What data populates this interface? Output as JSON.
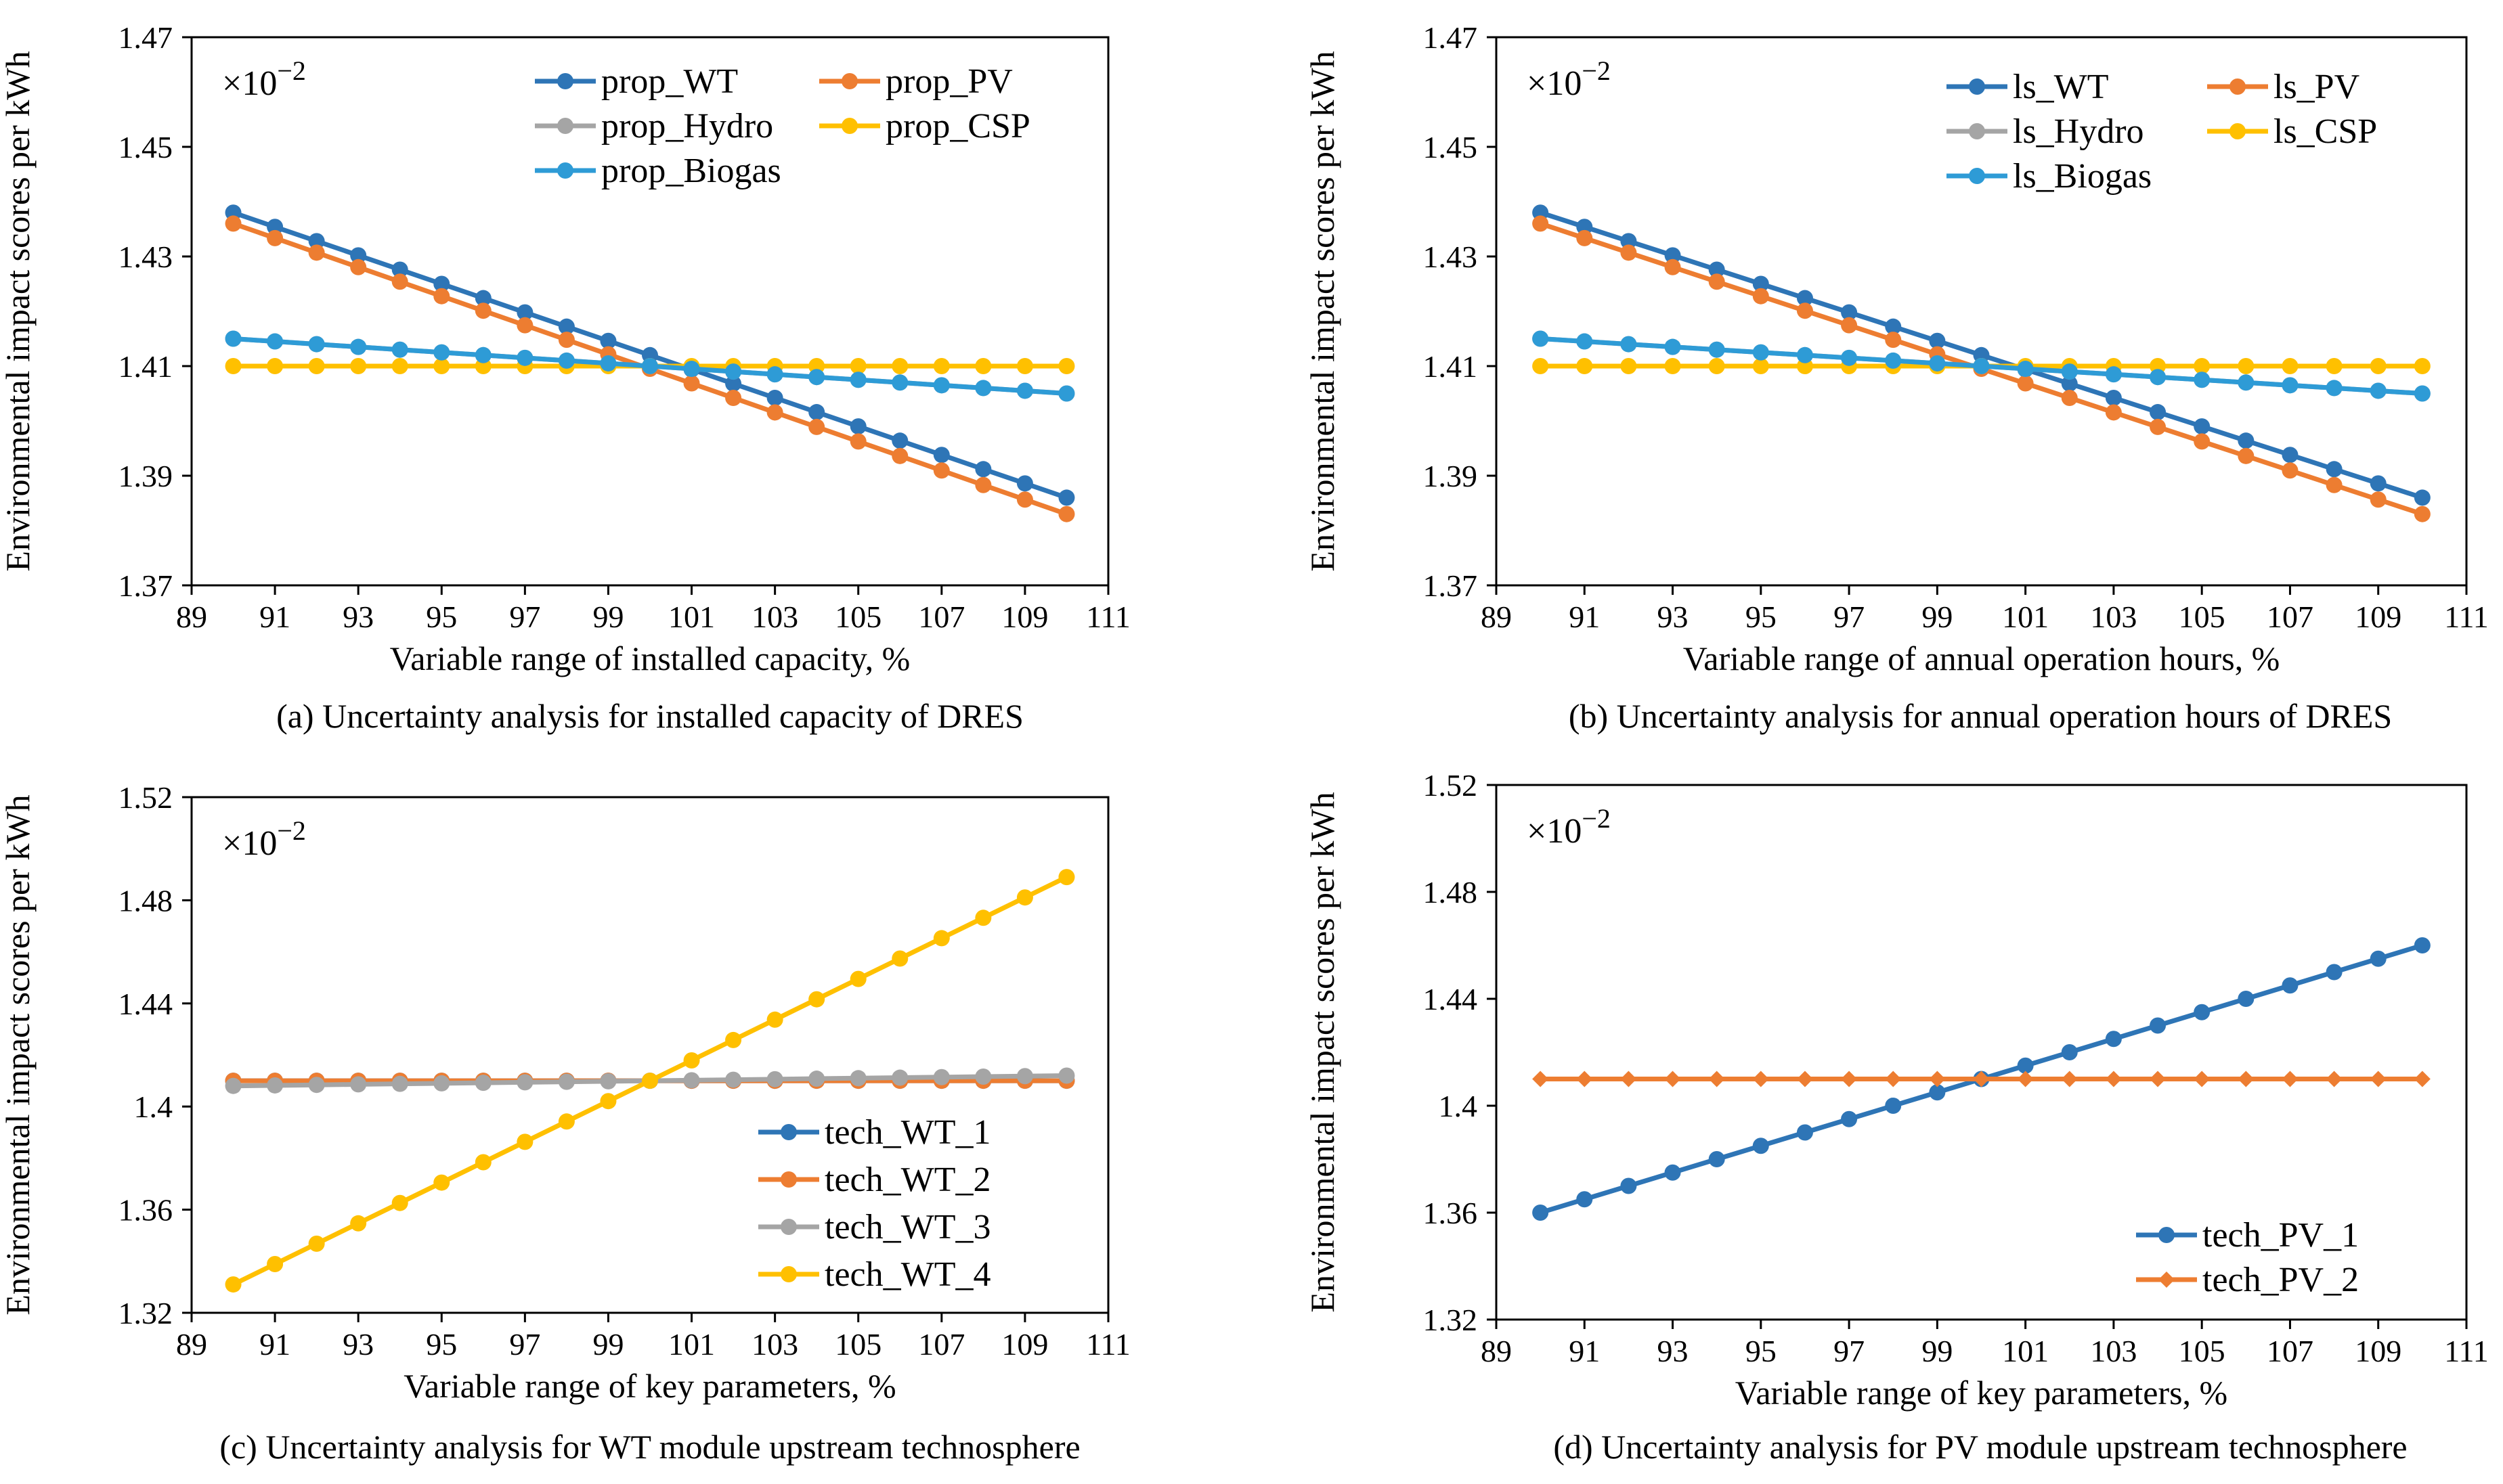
{
  "chart_data": [
    {
      "type": "line",
      "caption": "(a) Uncertainty analysis for installed capacity of DRES",
      "xlabel": "Variable range of installed capacity, %",
      "ylabel": "Environmental impact scores per kWh",
      "multiplier": "×10",
      "multiplier_exp": "−2",
      "xlim": [
        89,
        111
      ],
      "xticks": [
        "89",
        "91",
        "93",
        "95",
        "97",
        "99",
        "101",
        "103",
        "105",
        "107",
        "109",
        "111"
      ],
      "ylim": [
        1.37,
        1.47
      ],
      "yticks": [
        "1.37",
        "1.39",
        "1.41",
        "1.43",
        "1.45",
        "1.47"
      ],
      "marker": "circle",
      "series": [
        {
          "name": "prop_WT",
          "color": "#2e75b6",
          "start": 1.438,
          "end": 1.386
        },
        {
          "name": "prop_PV",
          "color": "#ed7d31",
          "start": 1.436,
          "end": 1.383
        },
        {
          "name": "prop_Hydro",
          "color": "#a5a5a5",
          "start": 1.415,
          "end": 1.405
        },
        {
          "name": "prop_CSP",
          "color": "#ffc000",
          "start": 1.41,
          "end": 1.41
        },
        {
          "name": "prop_Biogas",
          "color": "#2e9bd6",
          "start": 1.415,
          "end": 1.405
        }
      ]
    },
    {
      "type": "line",
      "caption": "(b) Uncertainty analysis for annual operation hours of DRES",
      "xlabel": "Variable range of annual operation hours, %",
      "ylabel": "Environmental impact scores per kWh",
      "multiplier": "×10",
      "multiplier_exp": "−2",
      "xlim": [
        89,
        111
      ],
      "xticks": [
        "89",
        "91",
        "93",
        "95",
        "97",
        "99",
        "101",
        "103",
        "105",
        "107",
        "109",
        "111"
      ],
      "ylim": [
        1.37,
        1.47
      ],
      "yticks": [
        "1.37",
        "1.39",
        "1.41",
        "1.43",
        "1.45",
        "1.47"
      ],
      "marker": "circle",
      "series": [
        {
          "name": "ls_WT",
          "color": "#2e75b6",
          "start": 1.438,
          "end": 1.386
        },
        {
          "name": "ls_PV",
          "color": "#ed7d31",
          "start": 1.436,
          "end": 1.383
        },
        {
          "name": "ls_Hydro",
          "color": "#a5a5a5",
          "start": 1.415,
          "end": 1.405
        },
        {
          "name": "ls_CSP",
          "color": "#ffc000",
          "start": 1.41,
          "end": 1.41
        },
        {
          "name": "ls_Biogas",
          "color": "#2e9bd6",
          "start": 1.415,
          "end": 1.405
        }
      ]
    },
    {
      "type": "line",
      "caption": "(c) Uncertainty analysis for WT module upstream technosphere",
      "xlabel": "Variable range of key parameters, %",
      "ylabel": "Environmental impact scores per kWh",
      "multiplier": "×10",
      "multiplier_exp": "−2",
      "xlim": [
        89,
        111
      ],
      "xticks": [
        "89",
        "91",
        "93",
        "95",
        "97",
        "99",
        "101",
        "103",
        "105",
        "107",
        "109",
        "111"
      ],
      "ylim": [
        1.32,
        1.52
      ],
      "yticks": [
        "1.32",
        "1.36",
        "1.4",
        "1.44",
        "1.48",
        "1.52"
      ],
      "marker": "circle",
      "series": [
        {
          "name": "tech_WT_1",
          "color": "#2e75b6",
          "start": 1.41,
          "end": 1.41
        },
        {
          "name": "tech_WT_2",
          "color": "#ed7d31",
          "start": 1.41,
          "end": 1.41
        },
        {
          "name": "tech_WT_3",
          "color": "#a5a5a5",
          "start": 1.408,
          "end": 1.412
        },
        {
          "name": "tech_WT_4",
          "color": "#ffc000",
          "start": 1.331,
          "end": 1.489
        }
      ]
    },
    {
      "type": "line",
      "caption": "(d) Uncertainty analysis for PV module upstream technosphere",
      "xlabel": "Variable range of key parameters, %",
      "ylabel": "Environmental impact scores per kWh",
      "multiplier": "×10",
      "multiplier_exp": "−2",
      "xlim": [
        89,
        111
      ],
      "xticks": [
        "89",
        "91",
        "93",
        "95",
        "97",
        "99",
        "101",
        "103",
        "105",
        "107",
        "109",
        "111"
      ],
      "ylim": [
        1.32,
        1.52
      ],
      "yticks": [
        "1.32",
        "1.36",
        "1.4",
        "1.44",
        "1.48",
        "1.52"
      ],
      "marker": "mixed",
      "series": [
        {
          "name": "tech_PV_1",
          "color": "#2e75b6",
          "start": 1.36,
          "end": 1.46,
          "marker": "circle"
        },
        {
          "name": "tech_PV_2",
          "color": "#ed7d31",
          "start": 1.41,
          "end": 1.41,
          "marker": "diamond"
        }
      ]
    }
  ],
  "x_points": [
    90,
    91,
    92,
    93,
    94,
    95,
    96,
    97,
    98,
    99,
    100,
    101,
    102,
    103,
    104,
    105,
    106,
    107,
    108,
    109,
    110
  ]
}
